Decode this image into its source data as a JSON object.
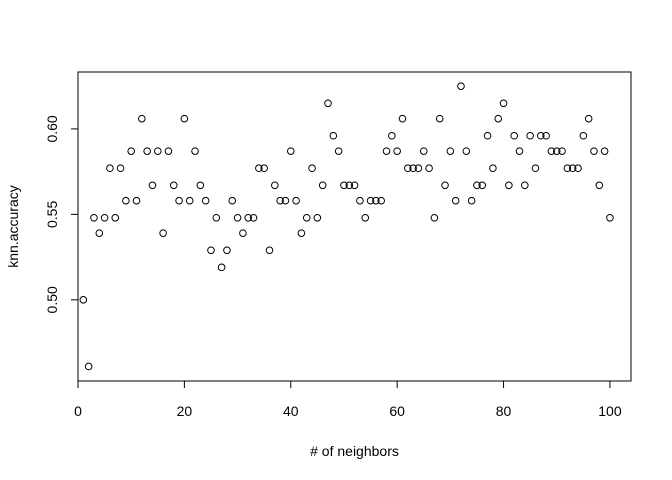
{
  "chart_data": {
    "type": "scatter",
    "title": "",
    "xlabel": "# of neighbors",
    "ylabel": "knn.accuracy",
    "xlim": [
      0,
      103.96
    ],
    "ylim": [
      0.4525,
      0.6333
    ],
    "x_ticks": [
      0,
      20,
      40,
      60,
      80,
      100
    ],
    "x_tick_labels": [
      "0",
      "20",
      "40",
      "60",
      "80",
      "100"
    ],
    "y_ticks": [
      0.5,
      0.55,
      0.6
    ],
    "y_tick_labels": [
      "0.50",
      "0.55",
      "0.60"
    ],
    "grid": false,
    "legend": "none",
    "marker": "open-circle",
    "color": "#000000",
    "series": [
      {
        "x": [
          1,
          2,
          3,
          4,
          5,
          6,
          7,
          8,
          9,
          10,
          11,
          12,
          13,
          14,
          15,
          16,
          17,
          18,
          19,
          20,
          21,
          22,
          23,
          24,
          25,
          26,
          27,
          28,
          29,
          30,
          31,
          32,
          33,
          34,
          35,
          36,
          37,
          38,
          39,
          40,
          41,
          42,
          43,
          44,
          45,
          46,
          47,
          48,
          49,
          50,
          51,
          52,
          53,
          54,
          55,
          56,
          57,
          58,
          59,
          60,
          61,
          62,
          63,
          64,
          65,
          66,
          67,
          68,
          69,
          70,
          71,
          72,
          73,
          74,
          75,
          76,
          77,
          78,
          79,
          80,
          81,
          82,
          83,
          84,
          85,
          86,
          87,
          88,
          89,
          90,
          91,
          92,
          93,
          94,
          95,
          96,
          97,
          98,
          99,
          100
        ],
        "y": [
          0.5,
          0.461,
          0.548,
          0.539,
          0.548,
          0.577,
          0.548,
          0.577,
          0.558,
          0.587,
          0.558,
          0.606,
          0.587,
          0.567,
          0.587,
          0.539,
          0.587,
          0.567,
          0.558,
          0.606,
          0.558,
          0.587,
          0.567,
          0.558,
          0.529,
          0.548,
          0.519,
          0.529,
          0.558,
          0.548,
          0.539,
          0.548,
          0.548,
          0.577,
          0.577,
          0.529,
          0.567,
          0.558,
          0.558,
          0.587,
          0.558,
          0.539,
          0.548,
          0.577,
          0.548,
          0.567,
          0.615,
          0.596,
          0.587,
          0.567,
          0.567,
          0.567,
          0.558,
          0.548,
          0.558,
          0.558,
          0.558,
          0.587,
          0.596,
          0.587,
          0.606,
          0.577,
          0.577,
          0.577,
          0.587,
          0.577,
          0.548,
          0.606,
          0.567,
          0.587,
          0.558,
          0.625,
          0.587,
          0.558,
          0.567,
          0.567,
          0.596,
          0.577,
          0.606,
          0.615,
          0.567,
          0.596,
          0.587,
          0.567,
          0.596,
          0.577,
          0.596,
          0.596,
          0.587,
          0.587,
          0.587,
          0.577,
          0.577,
          0.577,
          0.596,
          0.606,
          0.587,
          0.567,
          0.587,
          0.548
        ]
      }
    ]
  }
}
